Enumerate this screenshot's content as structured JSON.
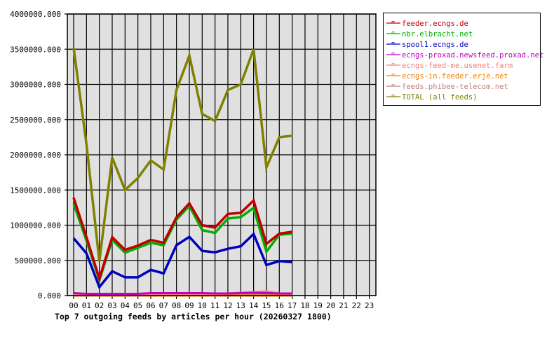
{
  "chart_data": {
    "type": "line",
    "title": "Top 7 outgoing feeds by articles per hour (20260327 1800)",
    "xlabel": "",
    "ylabel": "",
    "ylim": [
      0,
      4000000
    ],
    "yticks": [
      "0.000",
      "500000.000",
      "1000000.000",
      "1500000.000",
      "2000000.000",
      "2500000.000",
      "3000000.000",
      "3500000.000",
      "4000000.000"
    ],
    "categories": [
      "00",
      "01",
      "02",
      "03",
      "04",
      "05",
      "06",
      "07",
      "08",
      "09",
      "10",
      "11",
      "12",
      "13",
      "14",
      "15",
      "16",
      "17",
      "18",
      "19",
      "20",
      "21",
      "22",
      "23"
    ],
    "grid": true,
    "legend_position": "right",
    "series": [
      {
        "name": "feeder.ecngs.de",
        "color": "#c00000",
        "values": [
          1390000,
          830000,
          240000,
          830000,
          650000,
          710000,
          790000,
          750000,
          1110000,
          1310000,
          1000000,
          965000,
          1160000,
          1175000,
          1350000,
          735000,
          880000,
          905000
        ]
      },
      {
        "name": "nbr.elbracht.net",
        "color": "#00b000",
        "values": [
          1305000,
          780000,
          220000,
          790000,
          610000,
          680000,
          750000,
          715000,
          1080000,
          1275000,
          930000,
          890000,
          1095000,
          1115000,
          1245000,
          625000,
          865000,
          880000
        ]
      },
      {
        "name": "spool1.ecngs.de",
        "color": "#0000c0",
        "values": [
          815000,
          600000,
          120000,
          345000,
          260000,
          260000,
          365000,
          315000,
          715000,
          835000,
          635000,
          615000,
          665000,
          700000,
          875000,
          435000,
          490000,
          475000
        ]
      },
      {
        "name": "ecngs-proxad.newsfeed.proxad.net",
        "color": "#c000c0",
        "values": [
          35000,
          25000,
          25000,
          25000,
          25000,
          25000,
          35000,
          35000,
          35000,
          35000,
          35000,
          30000,
          30000,
          35000,
          40000,
          35000,
          30000,
          30000
        ]
      },
      {
        "name": "ecngs-feed-me.usenet.farm",
        "color": "#f08080",
        "values": [
          20000,
          20000,
          20000,
          20000,
          20000,
          20000,
          25000,
          25000,
          25000,
          25000,
          25000,
          25000,
          30000,
          40000,
          50000,
          60000,
          30000,
          25000
        ]
      },
      {
        "name": "ecngs-in.feeder.erje.net",
        "color": "#f08000",
        "values": [
          0,
          0,
          0,
          0,
          0,
          0,
          0,
          0,
          0,
          0,
          0,
          0,
          0,
          0,
          0,
          0,
          0,
          0
        ]
      },
      {
        "name": "feeds.phibee-telecom.net",
        "color": "#c08080",
        "values": [
          15000,
          15000,
          15000,
          15000,
          15000,
          15000,
          15000,
          15000,
          15000,
          15000,
          15000,
          15000,
          15000,
          15000,
          15000,
          15000,
          15000,
          15000
        ]
      },
      {
        "name": "TOTAL (all feeds)",
        "color": "#808000",
        "values": [
          3520000,
          2150000,
          485000,
          1960000,
          1500000,
          1670000,
          1920000,
          1790000,
          2920000,
          3410000,
          2580000,
          2480000,
          2920000,
          3000000,
          3500000,
          1820000,
          2250000,
          2270000
        ]
      }
    ]
  }
}
